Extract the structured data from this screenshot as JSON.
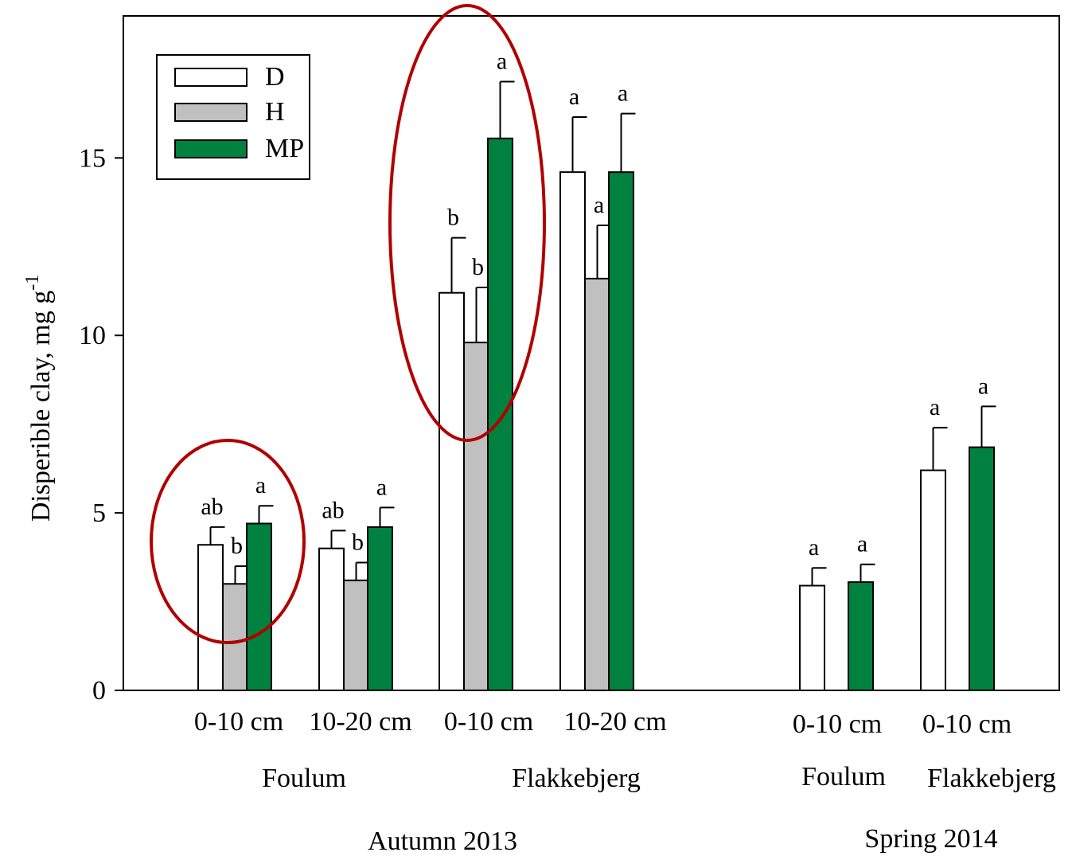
{
  "chart_data": {
    "type": "bar",
    "ylabel": "Disperible clay, mg g",
    "ylabel_sup": "-1",
    "ylim": [
      0,
      19
    ],
    "yticks": [
      0,
      5,
      10,
      15
    ],
    "grid": false,
    "legend_position": "top-left",
    "series": [
      {
        "name": "D",
        "color": "#ffffff"
      },
      {
        "name": "H",
        "color": "#c0c0c0"
      },
      {
        "name": "MP",
        "color": "#00813f"
      }
    ],
    "groups": [
      {
        "label": "0-10 cm",
        "bars": [
          {
            "series": "D",
            "value": 4.1,
            "error": 0.5,
            "sig": "ab"
          },
          {
            "series": "H",
            "value": 3.0,
            "error": 0.5,
            "sig": "b"
          },
          {
            "series": "MP",
            "value": 4.7,
            "error": 0.5,
            "sig": "a"
          }
        ]
      },
      {
        "label": "10-20 cm",
        "bars": [
          {
            "series": "D",
            "value": 4.0,
            "error": 0.5,
            "sig": "ab"
          },
          {
            "series": "H",
            "value": 3.1,
            "error": 0.5,
            "sig": "b"
          },
          {
            "series": "MP",
            "value": 4.6,
            "error": 0.55,
            "sig": "a"
          }
        ]
      },
      {
        "label": "0-10 cm",
        "bars": [
          {
            "series": "D",
            "value": 11.2,
            "error": 1.55,
            "sig": "b"
          },
          {
            "series": "H",
            "value": 9.8,
            "error": 1.55,
            "sig": "b"
          },
          {
            "series": "MP",
            "value": 15.55,
            "error": 1.6,
            "sig": "a"
          }
        ]
      },
      {
        "label": "10-20 cm",
        "bars": [
          {
            "series": "D",
            "value": 14.6,
            "error": 1.55,
            "sig": "a"
          },
          {
            "series": "H",
            "value": 11.6,
            "error": 1.5,
            "sig": "a"
          },
          {
            "series": "MP",
            "value": 14.6,
            "error": 1.65,
            "sig": "a"
          }
        ]
      },
      {
        "label": "0-10 cm",
        "bars": [
          {
            "series": "D",
            "value": 2.95,
            "error": 0.5,
            "sig": "a"
          },
          {
            "series": "MP",
            "value": 3.05,
            "error": 0.5,
            "sig": "a"
          }
        ]
      },
      {
        "label": "0-10 cm",
        "bars": [
          {
            "series": "D",
            "value": 6.2,
            "error": 1.2,
            "sig": "a"
          },
          {
            "series": "MP",
            "value": 6.85,
            "error": 1.15,
            "sig": "a"
          }
        ]
      }
    ],
    "sites": [
      "Foulum",
      "Flakkebjerg",
      "Foulum",
      "Flakkebjerg"
    ],
    "seasons": [
      "Autumn 2013",
      "Spring 2014"
    ],
    "highlight_color": "#b00000"
  }
}
